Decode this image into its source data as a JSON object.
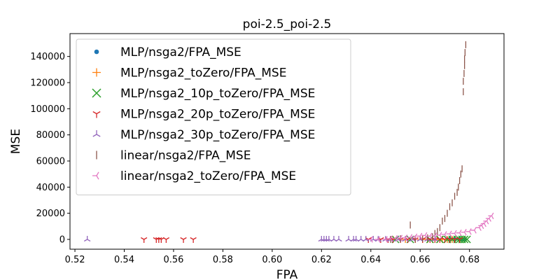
{
  "chart_data": {
    "type": "scatter",
    "title": "poi-2.5_poi-2.5",
    "xlabel": "FPA",
    "ylabel": "MSE",
    "xlim": [
      0.518,
      0.694
    ],
    "ylim": [
      -7500,
      157500
    ],
    "xticks": [
      0.52,
      0.54,
      0.56,
      0.58,
      0.6,
      0.62,
      0.64,
      0.66,
      0.68
    ],
    "xtick_labels": [
      "0.52",
      "0.54",
      "0.56",
      "0.58",
      "0.60",
      "0.62",
      "0.64",
      "0.66",
      "0.68"
    ],
    "yticks": [
      0,
      20000,
      40000,
      60000,
      80000,
      100000,
      120000,
      140000
    ],
    "ytick_labels": [
      "0",
      "20000",
      "40000",
      "60000",
      "80000",
      "100000",
      "120000",
      "140000"
    ],
    "grid": false,
    "legend_position": "upper-left",
    "series": [
      {
        "name": "MLP/nsga2/FPA_MSE",
        "marker": "circle",
        "color": "#1f77b4",
        "points": [
          [
            0.672,
            0
          ],
          [
            0.674,
            0
          ],
          [
            0.676,
            0
          ],
          [
            0.677,
            0
          ],
          [
            0.678,
            0
          ]
        ]
      },
      {
        "name": "MLP/nsga2_toZero/FPA_MSE",
        "marker": "plus",
        "color": "#ff7f0e",
        "points": [
          [
            0.649,
            0
          ],
          [
            0.654,
            0
          ],
          [
            0.658,
            0
          ],
          [
            0.661,
            0
          ],
          [
            0.663,
            0
          ],
          [
            0.665,
            0
          ],
          [
            0.667,
            0
          ],
          [
            0.669,
            0
          ],
          [
            0.671,
            0
          ],
          [
            0.673,
            0
          ]
        ]
      },
      {
        "name": "MLP/nsga2_10p_toZero/FPA_MSE",
        "marker": "x",
        "color": "#2ca02c",
        "points": [
          [
            0.65,
            0
          ],
          [
            0.656,
            0
          ],
          [
            0.664,
            0
          ],
          [
            0.668,
            0
          ],
          [
            0.671,
            0
          ],
          [
            0.673,
            0
          ],
          [
            0.675,
            0
          ],
          [
            0.676,
            0
          ],
          [
            0.677,
            0
          ],
          [
            0.678,
            0
          ],
          [
            0.679,
            0
          ]
        ]
      },
      {
        "name": "MLP/nsga2_20p_toZero/FPA_MSE",
        "marker": "tri_down",
        "color": "#d62728",
        "points": [
          [
            0.548,
            0
          ],
          [
            0.553,
            0
          ],
          [
            0.554,
            0
          ],
          [
            0.555,
            0
          ],
          [
            0.557,
            0
          ],
          [
            0.564,
            0
          ],
          [
            0.568,
            0
          ],
          [
            0.639,
            0
          ],
          [
            0.644,
            0
          ],
          [
            0.647,
            0
          ],
          [
            0.649,
            0
          ],
          [
            0.652,
            0
          ],
          [
            0.655,
            0
          ],
          [
            0.658,
            0
          ],
          [
            0.661,
            0
          ],
          [
            0.664,
            0
          ],
          [
            0.666,
            0
          ],
          [
            0.668,
            0
          ],
          [
            0.67,
            0
          ],
          [
            0.672,
            0
          ],
          [
            0.674,
            0
          ],
          [
            0.676,
            0
          ]
        ]
      },
      {
        "name": "MLP/nsga2_30p_toZero/FPA_MSE",
        "marker": "tri_up",
        "color": "#9467bd",
        "points": [
          [
            0.525,
            0
          ],
          [
            0.62,
            0
          ],
          [
            0.621,
            0
          ],
          [
            0.622,
            0
          ],
          [
            0.623,
            0
          ],
          [
            0.625,
            0
          ],
          [
            0.627,
            0
          ],
          [
            0.631,
            0
          ],
          [
            0.633,
            0
          ],
          [
            0.634,
            0
          ],
          [
            0.636,
            0
          ],
          [
            0.638,
            0
          ],
          [
            0.641,
            0
          ],
          [
            0.643,
            0
          ],
          [
            0.646,
            0
          ],
          [
            0.648,
            0
          ],
          [
            0.651,
            0
          ],
          [
            0.654,
            0
          ],
          [
            0.657,
            0
          ],
          [
            0.66,
            0
          ],
          [
            0.663,
            0
          ],
          [
            0.666,
            0
          ]
        ]
      },
      {
        "name": "linear/nsga2/FPA_MSE",
        "marker": "vline",
        "color": "#8c564b",
        "points": [
          [
            0.648,
            0
          ],
          [
            0.652,
            500
          ],
          [
            0.656,
            11000
          ],
          [
            0.658,
            300
          ],
          [
            0.661,
            800
          ],
          [
            0.663,
            1200
          ],
          [
            0.665,
            2000
          ],
          [
            0.666,
            4500
          ],
          [
            0.667,
            6000
          ],
          [
            0.668,
            9000
          ],
          [
            0.669,
            14000
          ],
          [
            0.67,
            16000
          ],
          [
            0.671,
            20000
          ],
          [
            0.672,
            25000
          ],
          [
            0.673,
            28000
          ],
          [
            0.674,
            33000
          ],
          [
            0.675,
            36000
          ],
          [
            0.6755,
            40000
          ],
          [
            0.676,
            45000
          ],
          [
            0.6765,
            50000
          ],
          [
            0.677,
            54000
          ],
          [
            0.6775,
            113000
          ],
          [
            0.6775,
            121000
          ],
          [
            0.6778,
            127000
          ],
          [
            0.678,
            133000
          ],
          [
            0.678,
            138000
          ],
          [
            0.6782,
            143000
          ],
          [
            0.6785,
            149000
          ]
        ]
      },
      {
        "name": "linear/nsga2_toZero/FPA_MSE",
        "marker": "tri_left",
        "color": "#e377c2",
        "points": [
          [
            0.64,
            0
          ],
          [
            0.643,
            0
          ],
          [
            0.646,
            0
          ],
          [
            0.648,
            500
          ],
          [
            0.65,
            800
          ],
          [
            0.652,
            1000
          ],
          [
            0.654,
            1200
          ],
          [
            0.656,
            1600
          ],
          [
            0.658,
            2000
          ],
          [
            0.66,
            2500
          ],
          [
            0.662,
            3000
          ],
          [
            0.664,
            2500
          ],
          [
            0.666,
            2800
          ],
          [
            0.668,
            3200
          ],
          [
            0.67,
            3800
          ],
          [
            0.672,
            4200
          ],
          [
            0.674,
            4600
          ],
          [
            0.676,
            5000
          ],
          [
            0.678,
            5500
          ],
          [
            0.68,
            6000
          ],
          [
            0.682,
            7000
          ],
          [
            0.684,
            9000
          ],
          [
            0.685,
            10500
          ],
          [
            0.686,
            12000
          ],
          [
            0.687,
            14000
          ],
          [
            0.688,
            16000
          ],
          [
            0.689,
            18000
          ]
        ]
      }
    ]
  }
}
